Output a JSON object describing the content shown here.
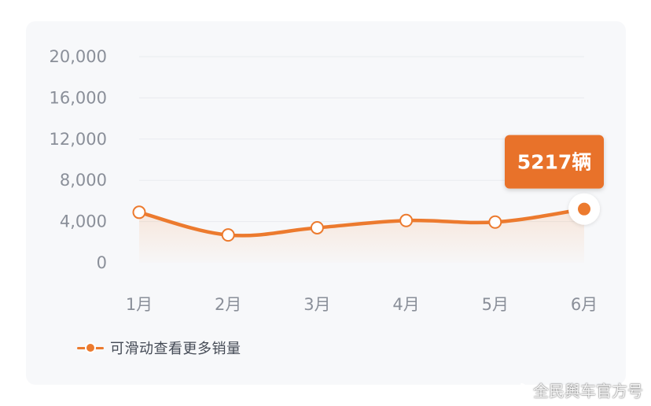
{
  "chart_data": {
    "type": "line",
    "categories": [
      "1月",
      "2月",
      "3月",
      "4月",
      "5月",
      "6月"
    ],
    "series": [
      {
        "values": [
          4900,
          2700,
          3400,
          4100,
          3950,
          5217
        ]
      }
    ],
    "yticks": [
      "0",
      "4,000",
      "8,000",
      "12,000",
      "16,000",
      "20,000"
    ],
    "ylim": [
      0,
      20000
    ],
    "highlight": {
      "index": 5,
      "label": "5217辆"
    },
    "grid": true,
    "legend": "bottom-left",
    "colors": {
      "line": "#ec7a2e",
      "tooltip": "#e8722b",
      "grid": "#e9ebef",
      "axis_text": "#8a8f99"
    }
  },
  "legend": {
    "label": "可滑动查看更多销量"
  },
  "watermark": {
    "text": "全民舆车官方号",
    "icon": "weibo-icon"
  }
}
